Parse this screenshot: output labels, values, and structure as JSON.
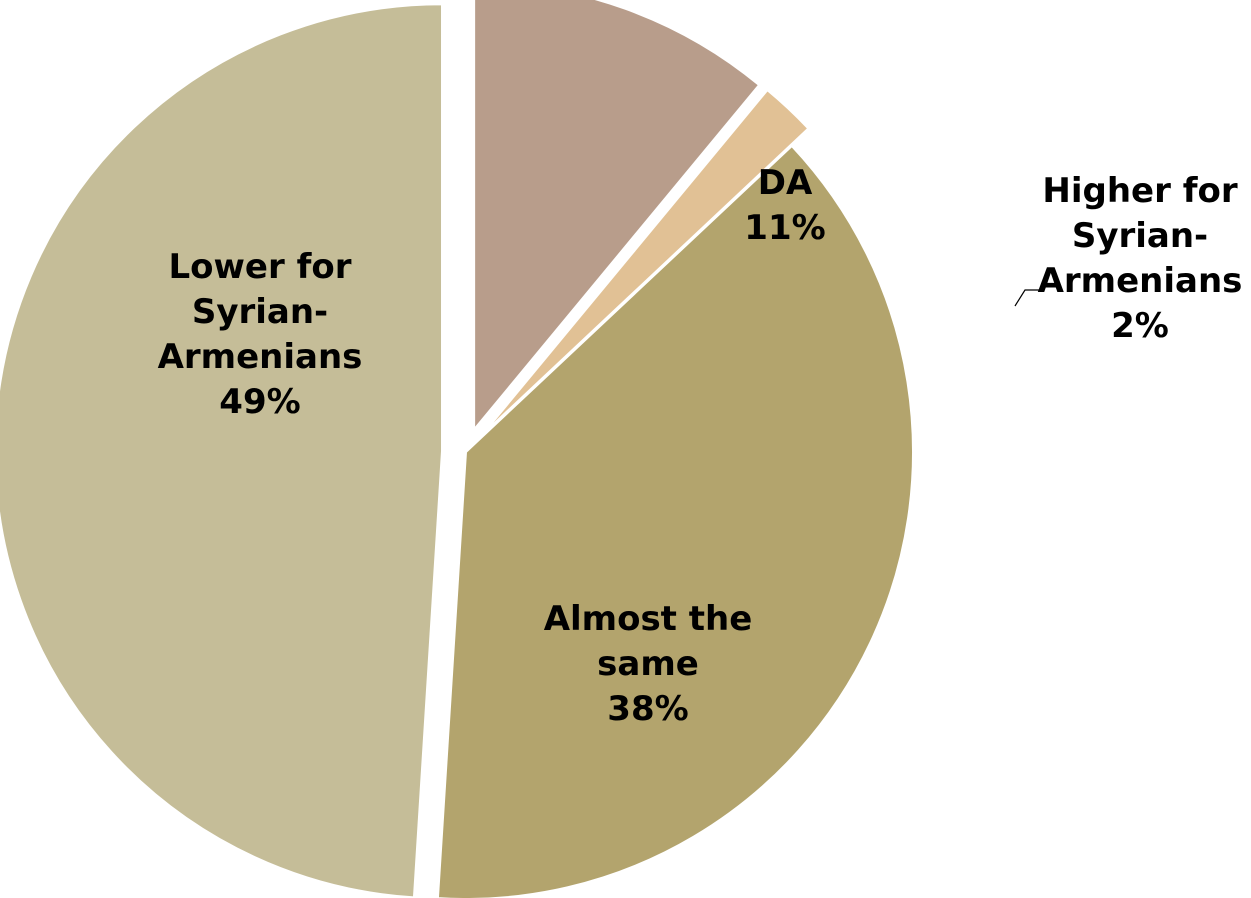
{
  "chart_data": {
    "type": "pie",
    "title": "",
    "start_angle_deg": 0,
    "direction": "clockwise",
    "slices": [
      {
        "category": "DA",
        "label_lines": [
          "DA",
          "11%"
        ],
        "value": 11,
        "color": "#b89d8b",
        "exploded": true
      },
      {
        "category": "Higher for Syrian-Armenians",
        "label_lines": [
          "Higher for",
          "Syrian-",
          "Armenians",
          "2%"
        ],
        "value": 2,
        "color": "#e1c195",
        "exploded": true,
        "label_outside": true
      },
      {
        "category": "Almost the same",
        "label_lines": [
          "Almost the",
          "same",
          "38%"
        ],
        "value": 38,
        "color": "#b3a46d",
        "exploded": false
      },
      {
        "category": "Lower for Syrian-Armenians",
        "label_lines": [
          "Lower for",
          "Syrian-",
          "Armenians",
          "49%"
        ],
        "value": 49,
        "color": "#c5bd98",
        "exploded": true
      }
    ]
  }
}
